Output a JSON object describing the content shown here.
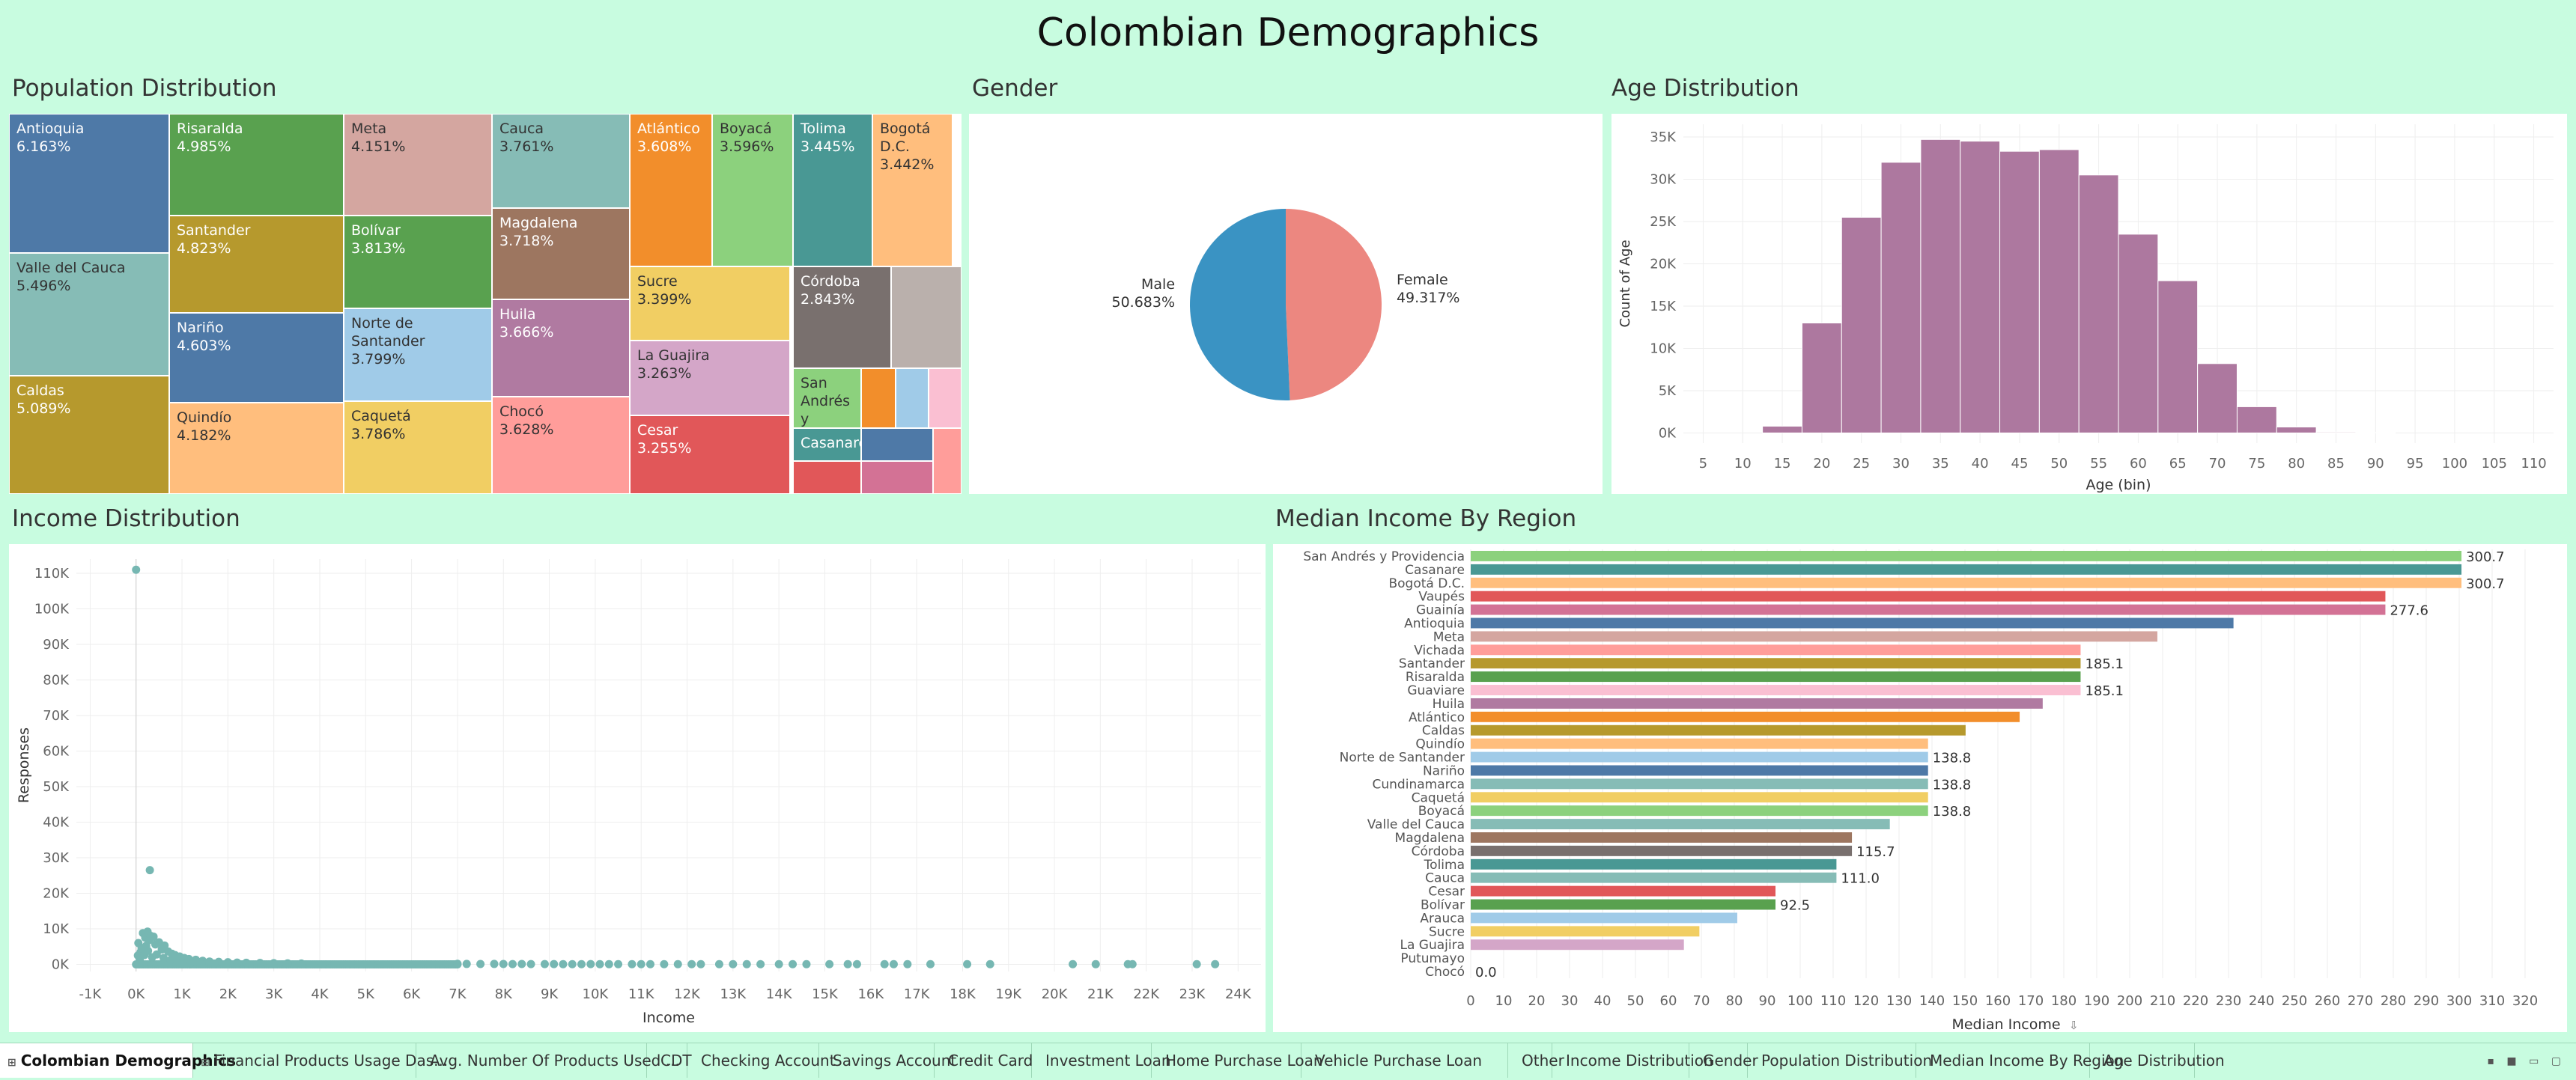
{
  "dashboard": {
    "title": "Colombian Demographics"
  },
  "panels": {
    "population": "Population Distribution",
    "gender": "Gender",
    "age": "Age Distribution",
    "income": "Income Distribution",
    "median": "Median Income By Region"
  },
  "chart_data": [
    {
      "id": "population",
      "type": "treemap",
      "title": "Population Distribution",
      "items": [
        {
          "label": "Antioquia",
          "value": "6.163%",
          "color": "#4e79a7"
        },
        {
          "label": "Valle del Cauca",
          "value": "5.496%",
          "color": "#86bcb6"
        },
        {
          "label": "Caldas",
          "value": "5.089%",
          "color": "#b6992d"
        },
        {
          "label": "Risaralda",
          "value": "4.985%",
          "color": "#59a14f"
        },
        {
          "label": "Santander",
          "value": "4.823%",
          "color": "#b6992d"
        },
        {
          "label": "Nariño",
          "value": "4.603%",
          "color": "#4e79a7"
        },
        {
          "label": "Quindío",
          "value": "4.182%",
          "color": "#ffbe7d"
        },
        {
          "label": "Meta",
          "value": "4.151%",
          "color": "#d4a6a0"
        },
        {
          "label": "Bolívar",
          "value": "3.813%",
          "color": "#59a14f"
        },
        {
          "label": "Norte de Santander",
          "value": "3.799%",
          "color": "#a0cbe8"
        },
        {
          "label": "Caquetá",
          "value": "3.786%",
          "color": "#f1ce63"
        },
        {
          "label": "Cauca",
          "value": "3.761%",
          "color": "#86bcb6"
        },
        {
          "label": "Magdalena",
          "value": "3.718%",
          "color": "#9d7660"
        },
        {
          "label": "Huila",
          "value": "3.666%",
          "color": "#b07aa1"
        },
        {
          "label": "Chocó",
          "value": "3.628%",
          "color": "#ff9d9a"
        },
        {
          "label": "Atlántico",
          "value": "3.608%",
          "color": "#f28e2b"
        },
        {
          "label": "Boyacá",
          "value": "3.596%",
          "color": "#8cd17d"
        },
        {
          "label": "Tolima",
          "value": "3.445%",
          "color": "#499894"
        },
        {
          "label": "Bogotá D.C.",
          "value": "3.442%",
          "color": "#ffbe7d"
        },
        {
          "label": "Sucre",
          "value": "3.399%",
          "color": "#f1ce63"
        },
        {
          "label": "La Guajira",
          "value": "3.263%",
          "color": "#d4a6c8"
        },
        {
          "label": "Cesar",
          "value": "3.255%",
          "color": "#e15759"
        },
        {
          "label": "Córdoba",
          "value": "2.843%",
          "color": "#79706e"
        },
        {
          "label": "San Andrés y",
          "value": "",
          "color": "#8cd17d"
        },
        {
          "label": "Casanare",
          "value": "",
          "color": "#499894"
        },
        {
          "label": "",
          "value": "",
          "color": "#bab0ac"
        },
        {
          "label": "",
          "value": "",
          "color": "#f28e2b"
        },
        {
          "label": "",
          "value": "",
          "color": "#a0cbe8"
        },
        {
          "label": "",
          "value": "",
          "color": "#fabfd2"
        },
        {
          "label": "",
          "value": "",
          "color": "#4e79a7"
        },
        {
          "label": "",
          "value": "",
          "color": "#e15759"
        },
        {
          "label": "",
          "value": "",
          "color": "#d37295"
        },
        {
          "label": "",
          "value": "",
          "color": "#ff9d9a"
        }
      ]
    },
    {
      "id": "gender",
      "type": "pie",
      "title": "Gender",
      "slices": [
        {
          "name": "Male",
          "value": 50.683,
          "label": "50.683%",
          "color": "#3a93c3"
        },
        {
          "name": "Female",
          "value": 49.317,
          "label": "49.317%",
          "color": "#ec8780"
        }
      ]
    },
    {
      "id": "age",
      "type": "bar",
      "title": "Age Distribution",
      "xlabel": "Age (bin)",
      "ylabel": "Count of Age",
      "bin_width": 5,
      "x_ticks": [
        5,
        10,
        15,
        20,
        25,
        30,
        35,
        40,
        45,
        50,
        55,
        60,
        65,
        70,
        75,
        80,
        85,
        90,
        95,
        100,
        105,
        110
      ],
      "y_ticks": [
        0,
        5000,
        10000,
        15000,
        20000,
        25000,
        30000,
        35000
      ],
      "y_tick_labels": [
        "0K",
        "5K",
        "10K",
        "15K",
        "20K",
        "25K",
        "30K",
        "35K"
      ],
      "ylim": [
        -1200,
        36500
      ],
      "xlim": [
        2.5,
        112.5
      ],
      "bins": [
        {
          "x": 15,
          "y": 800
        },
        {
          "x": 20,
          "y": 13000
        },
        {
          "x": 25,
          "y": 25500
        },
        {
          "x": 30,
          "y": 32000
        },
        {
          "x": 35,
          "y": 34700
        },
        {
          "x": 40,
          "y": 34500
        },
        {
          "x": 45,
          "y": 33300
        },
        {
          "x": 50,
          "y": 33500
        },
        {
          "x": 55,
          "y": 30500
        },
        {
          "x": 60,
          "y": 23500
        },
        {
          "x": 65,
          "y": 18000
        },
        {
          "x": 70,
          "y": 8200
        },
        {
          "x": 75,
          "y": 3100
        },
        {
          "x": 80,
          "y": 700
        },
        {
          "x": 85,
          "y": 100
        },
        {
          "x": 90,
          "y": 30
        }
      ],
      "color": "#ad789f",
      "grid": true
    },
    {
      "id": "income",
      "type": "scatter",
      "title": "Income Distribution",
      "xlabel": "Income",
      "ylabel": "Responses",
      "x_ticks": [
        -1000,
        0,
        1000,
        2000,
        3000,
        4000,
        5000,
        6000,
        7000,
        8000,
        9000,
        10000,
        11000,
        12000,
        13000,
        14000,
        15000,
        16000,
        17000,
        18000,
        19000,
        20000,
        21000,
        22000,
        23000,
        24000
      ],
      "x_tick_labels": [
        "-1K",
        "0K",
        "1K",
        "2K",
        "3K",
        "4K",
        "5K",
        "6K",
        "7K",
        "8K",
        "9K",
        "10K",
        "11K",
        "12K",
        "13K",
        "14K",
        "15K",
        "16K",
        "17K",
        "18K",
        "19K",
        "20K",
        "21K",
        "22K",
        "23K",
        "24K"
      ],
      "y_ticks": [
        0,
        10000,
        20000,
        30000,
        40000,
        50000,
        60000,
        70000,
        80000,
        90000,
        100000,
        110000
      ],
      "y_tick_labels": [
        "0K",
        "10K",
        "20K",
        "30K",
        "40K",
        "50K",
        "60K",
        "70K",
        "80K",
        "90K",
        "100K",
        "110K"
      ],
      "xlim": [
        -1300,
        24500
      ],
      "ylim": [
        -2000,
        114000
      ],
      "color": "#76b7b2",
      "points": [
        [
          0,
          111000
        ],
        [
          300,
          26500
        ],
        [
          50,
          6000
        ],
        [
          100,
          3500
        ],
        [
          150,
          8800
        ],
        [
          200,
          7500
        ],
        [
          250,
          9200
        ],
        [
          280,
          6800
        ],
        [
          320,
          8000
        ],
        [
          380,
          7800
        ],
        [
          420,
          5600
        ],
        [
          500,
          6200
        ],
        [
          560,
          4200
        ],
        [
          620,
          5300
        ],
        [
          700,
          3600
        ],
        [
          780,
          3000
        ],
        [
          850,
          2600
        ],
        [
          950,
          2200
        ],
        [
          1050,
          1800
        ],
        [
          1150,
          1500
        ],
        [
          1300,
          1300
        ],
        [
          1450,
          1000
        ],
        [
          1600,
          800
        ],
        [
          1800,
          700
        ],
        [
          2000,
          600
        ],
        [
          2200,
          500
        ],
        [
          2400,
          450
        ],
        [
          2700,
          400
        ],
        [
          3000,
          350
        ],
        [
          3300,
          300
        ],
        [
          3600,
          250
        ],
        [
          40,
          2500
        ],
        [
          80,
          1500
        ],
        [
          120,
          4600
        ],
        [
          180,
          2600
        ],
        [
          220,
          5200
        ],
        [
          260,
          3800
        ],
        [
          350,
          2000
        ],
        [
          450,
          2800
        ],
        [
          600,
          1800
        ],
        [
          750,
          1200
        ],
        [
          900,
          900
        ],
        [
          1000,
          600
        ],
        [
          1200,
          500
        ],
        [
          1400,
          300
        ],
        [
          1700,
          250
        ],
        [
          7000,
          150
        ],
        [
          7200,
          120
        ],
        [
          7500,
          100
        ],
        [
          7800,
          120
        ],
        [
          8000,
          100
        ],
        [
          8200,
          80
        ],
        [
          8400,
          100
        ],
        [
          8600,
          80
        ],
        [
          8900,
          80
        ],
        [
          9100,
          80
        ],
        [
          9300,
          60
        ],
        [
          9500,
          60
        ],
        [
          9700,
          60
        ],
        [
          9900,
          80
        ],
        [
          10100,
          60
        ],
        [
          10300,
          60
        ],
        [
          10500,
          60
        ],
        [
          10800,
          50
        ],
        [
          11000,
          50
        ],
        [
          11200,
          50
        ],
        [
          11500,
          50
        ],
        [
          11800,
          50
        ],
        [
          12100,
          50
        ],
        [
          12300,
          50
        ],
        [
          12700,
          50
        ],
        [
          13000,
          50
        ],
        [
          13300,
          50
        ],
        [
          13600,
          50
        ],
        [
          14000,
          50
        ],
        [
          14300,
          50
        ],
        [
          14600,
          50
        ],
        [
          15100,
          50
        ],
        [
          15500,
          50
        ],
        [
          15700,
          50
        ],
        [
          16300,
          50
        ],
        [
          16500,
          50
        ],
        [
          16800,
          50
        ],
        [
          17300,
          50
        ],
        [
          18100,
          50
        ],
        [
          18600,
          50
        ],
        [
          20400,
          50
        ],
        [
          20900,
          50
        ],
        [
          21600,
          50
        ],
        [
          21700,
          50
        ],
        [
          23100,
          50
        ],
        [
          23500,
          50
        ]
      ],
      "dense_band": {
        "from": 0,
        "to": 7000,
        "step": 40
      }
    },
    {
      "id": "median",
      "type": "bar",
      "orientation": "horizontal",
      "title": "Median Income By Region",
      "xlabel": "Median Income",
      "xlim": [
        0,
        325
      ],
      "x_ticks": [
        0,
        10,
        20,
        30,
        40,
        50,
        60,
        70,
        80,
        90,
        100,
        110,
        120,
        130,
        140,
        150,
        160,
        170,
        180,
        190,
        200,
        210,
        220,
        230,
        240,
        250,
        260,
        270,
        280,
        290,
        300,
        310,
        320
      ],
      "categories": [
        "San Andrés y Providencia",
        "Casanare",
        "Bogotá D.C.",
        "Vaupés",
        "Guainía",
        "Antioquia",
        "Meta",
        "Vichada",
        "Santander",
        "Risaralda",
        "Guaviare",
        "Huila",
        "Atlántico",
        "Caldas",
        "Quindío",
        "Norte de Santander",
        "Nariño",
        "Cundinamarca",
        "Caquetá",
        "Boyacá",
        "Valle del Cauca",
        "Magdalena",
        "Córdoba",
        "Tolima",
        "Cauca",
        "Cesar",
        "Bolívar",
        "Arauca",
        "Sucre",
        "La Guajira",
        "Putumayo",
        "Chocó"
      ],
      "values": [
        300.7,
        300.7,
        300.7,
        277.6,
        277.6,
        231.5,
        208.4,
        185.1,
        185.1,
        185.1,
        185.1,
        173.6,
        166.6,
        150.2,
        138.8,
        138.8,
        138.8,
        138.8,
        138.8,
        138.8,
        127.2,
        115.7,
        115.7,
        111.0,
        111.0,
        92.5,
        92.5,
        80.9,
        69.4,
        64.7,
        0,
        0
      ],
      "data_labels": [
        "300.7",
        "",
        "300.7",
        "",
        "277.6",
        "",
        "",
        "",
        "185.1",
        "",
        "185.1",
        "",
        "",
        "",
        "",
        "138.8",
        "",
        "138.8",
        "",
        "138.8",
        "",
        "",
        "115.7",
        "",
        "111.0",
        "",
        "92.5",
        "",
        "",
        "",
        "",
        "0.0"
      ],
      "colors": [
        "#8cd17d",
        "#499894",
        "#ffbe7d",
        "#e15759",
        "#d37295",
        "#4e79a7",
        "#d4a6a0",
        "#ff9d9a",
        "#b6992d",
        "#59a14f",
        "#fabfd2",
        "#b07aa1",
        "#f28e2b",
        "#b6992d",
        "#ffbe7d",
        "#a0cbe8",
        "#4e79a7",
        "#86bcb6",
        "#f1ce63",
        "#8cd17d",
        "#86bcb6",
        "#9d7660",
        "#79706e",
        "#499894",
        "#86bcb6",
        "#e15759",
        "#59a14f",
        "#a0cbe8",
        "#f1ce63",
        "#d4a6c8",
        "#79706e",
        "#ff9d9a"
      ],
      "sort_icon": "sort-descending-icon"
    }
  ],
  "tabs": [
    {
      "label": "Colombian Demographics",
      "active": true,
      "icon": "dashboard-icon"
    },
    {
      "label": "Financial Products Usage Das...",
      "icon": "dashboard-icon"
    },
    {
      "label": "Avg. Number Of Products Used ..."
    },
    {
      "label": "CDT"
    },
    {
      "label": "Checking Account"
    },
    {
      "label": "Savings Account"
    },
    {
      "label": "Credit Card"
    },
    {
      "label": "Investment Loan"
    },
    {
      "label": "Home Purchase Loan"
    },
    {
      "label": "Vehicle Purchase Loan"
    },
    {
      "label": "Other"
    },
    {
      "label": "Income Distribution"
    },
    {
      "label": "Gender"
    },
    {
      "label": "Population Distribution"
    },
    {
      "label": "Median Income By Region"
    },
    {
      "label": "Age Distribution"
    }
  ]
}
